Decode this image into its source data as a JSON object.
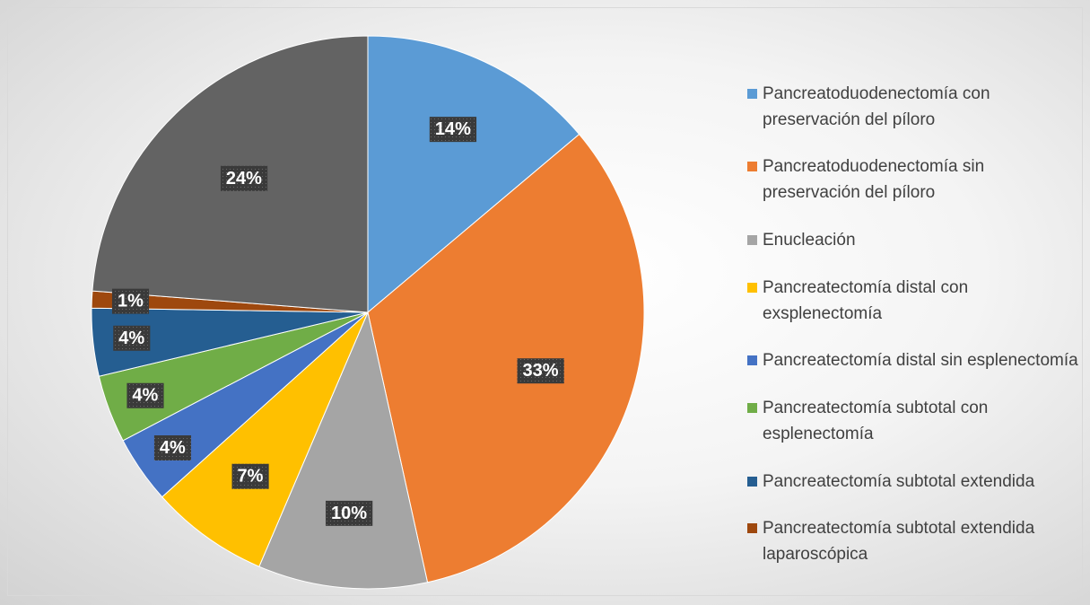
{
  "chart_data": {
    "type": "pie",
    "categories": [
      "Pancreatoduodenectomía con preservación del píloro",
      "Pancreatoduodenectomía sin preservación del píloro",
      "Enucleación",
      "Pancreatectomía distal con exsplenectomía",
      "Pancreatectomía distal sin esplenectomía",
      "Pancreatectomía subtotal con esplenectomía",
      "Pancreatectomía subtotal extendida",
      "Pancreatectomía subtotal extendida laparoscópica",
      null
    ],
    "values": [
      14,
      33,
      10,
      7,
      4,
      4,
      4,
      1,
      24
    ],
    "colors": [
      "#5b9bd5",
      "#ed7d31",
      "#a5a5a5",
      "#ffc000",
      "#4472c4",
      "#70ad47",
      "#255e91",
      "#9e480e",
      "#636363"
    ],
    "legend": "right"
  }
}
